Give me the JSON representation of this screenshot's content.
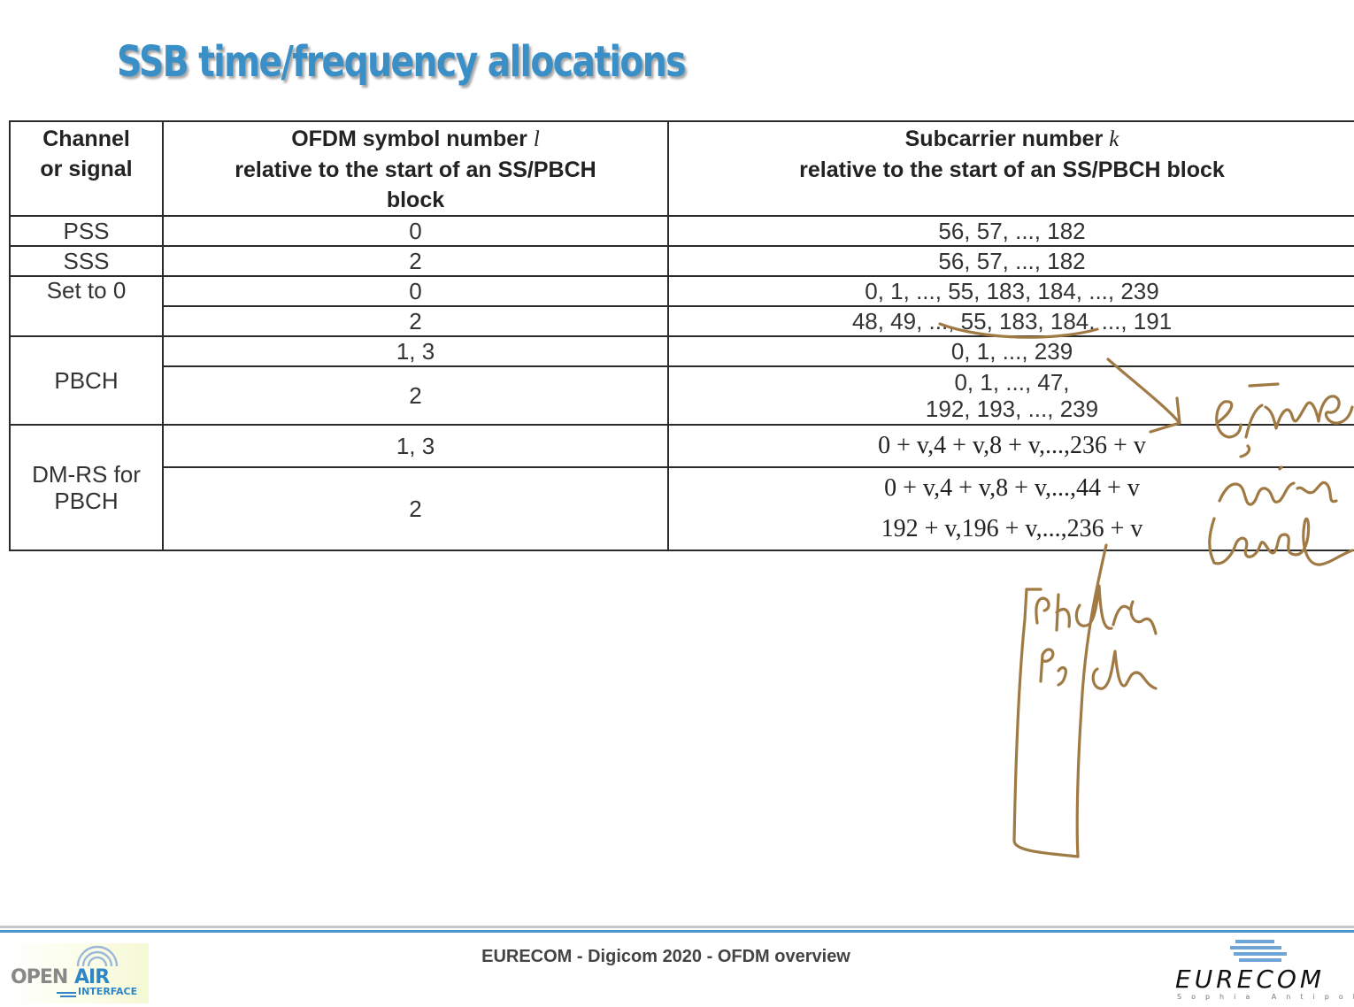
{
  "title": "SSB time/frequency allocations",
  "table": {
    "headers": {
      "channel": [
        "Channel",
        "or signal"
      ],
      "symbol": {
        "line1": "OFDM symbol number ",
        "var": "l",
        "line2": "relative to the start of an SS/PBCH",
        "line3": "block"
      },
      "subcarrier": {
        "line1": "Subcarrier number ",
        "var": "k",
        "line2": "relative to the start of an SS/PBCH block"
      }
    },
    "rows": {
      "pss": {
        "channel": "PSS",
        "symbol": "0",
        "subcarrier": "56, 57, ..., 182"
      },
      "sss": {
        "channel": "SSS",
        "symbol": "2",
        "subcarrier": "56, 57, ..., 182"
      },
      "set0": {
        "channel": "Set to 0",
        "symbol_a": "0",
        "subcarrier_a": "0, 1, ..., 55, 183, 184, ..., 239",
        "symbol_b": "2",
        "subcarrier_b": "48, 49, ..., 55, 183, 184, ..., 191"
      },
      "pbch": {
        "channel": "PBCH",
        "symbol_a": "1, 3",
        "subcarrier_a": "0, 1, ..., 239",
        "symbol_b": "2",
        "subcarrier_b_1": "0, 1, ..., 47,",
        "subcarrier_b_2": "192, 193, ..., 239"
      },
      "dmrs": {
        "channel_1": "DM-RS for",
        "channel_2": "PBCH",
        "symbol_a": "1, 3",
        "subcarrier_a": "0 + v,4 + v,8 + v,...,236 + v",
        "symbol_b": "2",
        "subcarrier_b_1": "0 + v,4 + v,8 + v,...,44 + v",
        "subcarrier_b_2": "192 + v,196 + v,...,236 + v"
      }
    }
  },
  "footer": {
    "text": "EURECOM - Digicom 2020 - OFDM overview"
  },
  "logos": {
    "oai": {
      "open": "OPEN",
      "air": "AIR",
      "interface": "INTERFACE"
    },
    "eurecom": {
      "word": "EURECOM",
      "sub": "Sophia Antipolis"
    }
  },
  "colors": {
    "title": "#3a8fc7",
    "ink": "#a07a44",
    "rule": "#4c96cc"
  }
}
